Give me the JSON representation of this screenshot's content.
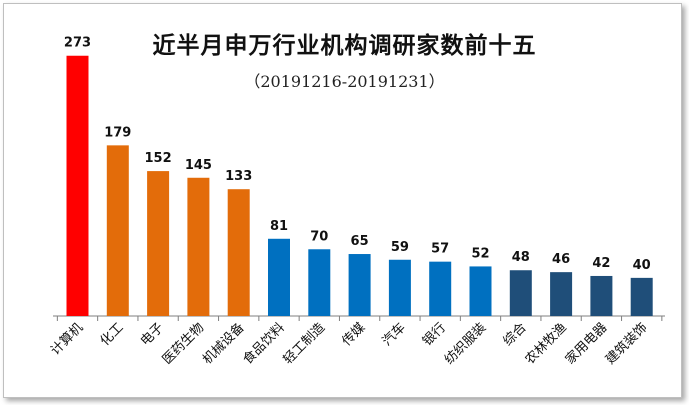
{
  "chart_data": {
    "type": "bar",
    "title": "近半月申万行业机构调研家数前十五",
    "subtitle": "（20191216-20191231）",
    "categories": [
      "计算机",
      "化工",
      "电子",
      "医药生物",
      "机械设备",
      "食品饮料",
      "轻工制造",
      "传媒",
      "汽车",
      "银行",
      "纺织服装",
      "综合",
      "农林牧渔",
      "家用电器",
      "建筑装饰"
    ],
    "values": [
      273,
      179,
      152,
      145,
      133,
      81,
      70,
      65,
      59,
      57,
      52,
      48,
      46,
      42,
      40
    ],
    "colors": [
      "#ff0000",
      "#e36c0a",
      "#e36c0a",
      "#e36c0a",
      "#e36c0a",
      "#0070c0",
      "#0070c0",
      "#0070c0",
      "#0070c0",
      "#0070c0",
      "#0070c0",
      "#1f4e79",
      "#1f4e79",
      "#1f4e79",
      "#1f4e79"
    ],
    "ylim": [
      0,
      300
    ],
    "grid": false,
    "legend": "none"
  }
}
